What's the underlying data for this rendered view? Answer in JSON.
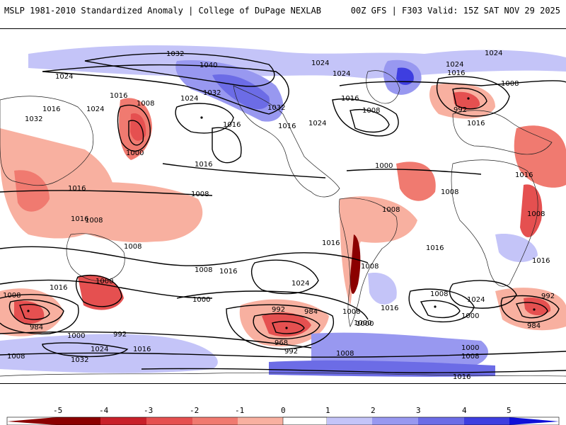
{
  "header": {
    "title": "MSLP 1981-2010 Standardized Anomaly | College of DuPage NEXLAB",
    "run_info": "00Z GFS | F303 Valid: 15Z SAT NOV 29 2025"
  },
  "colors": {
    "neg5": "#8b0000",
    "neg4": "#c8202a",
    "neg3": "#e55050",
    "neg2": "#f07a70",
    "neg1": "#f8b0a0",
    "zero": "#ffffff",
    "pos1": "#c4c4f8",
    "pos2": "#9898f0",
    "pos3": "#6c6ce6",
    "pos4": "#3e3ee0",
    "pos5": "#1010d8"
  },
  "isobar_labels": [
    "1032",
    "1024",
    "1040",
    "1024",
    "1024",
    "1024",
    "1008",
    "1024",
    "1016",
    "1008",
    "1032",
    "1016",
    "1024",
    "1032",
    "1016",
    "1016",
    "1024",
    "1016",
    "1016",
    "1008",
    "1032",
    "1024",
    "1016",
    "1016",
    "992",
    "1000",
    "1016",
    "1000",
    "1016",
    "1008",
    "1008",
    "1016",
    "1008",
    "1008",
    "1008",
    "1016",
    "1016",
    "1008",
    "1016",
    "1008",
    "1016",
    "1000",
    "1008",
    "1016",
    "1024",
    "1016",
    "1000",
    "992",
    "984",
    "1008",
    "1000",
    "1008",
    "1024",
    "1000",
    "992",
    "984",
    "1008",
    "984",
    "1000",
    "992",
    "968",
    "992",
    "1000",
    "1024",
    "1016",
    "1032",
    "1008",
    "1008",
    "1000",
    "1016",
    "1008"
  ],
  "colorbar": {
    "ticks": [
      "-5",
      "-4",
      "-3",
      "-2",
      "-1",
      "0",
      "1",
      "2",
      "3",
      "4",
      "5"
    ]
  }
}
